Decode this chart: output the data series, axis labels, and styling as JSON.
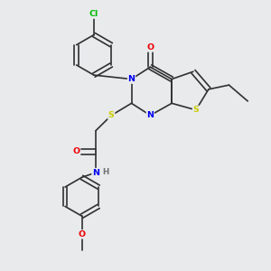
{
  "bg_color": "#e8eaec",
  "atom_colors": {
    "C": "#303030",
    "N": "#0000ee",
    "O": "#ee0000",
    "S": "#cccc00",
    "Cl": "#00bb00",
    "H": "#707070"
  },
  "bond_color": "#303030"
}
